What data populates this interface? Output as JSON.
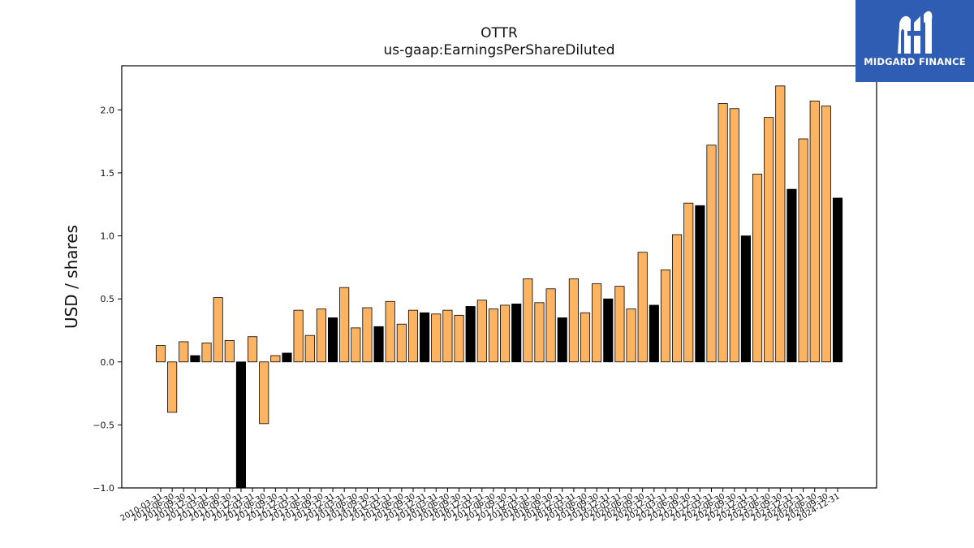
{
  "chart_data": {
    "type": "bar",
    "title": "OTTR",
    "subtitle": "us-gaap:EarningsPerShareDiluted",
    "xlabel": "",
    "ylabel": "USD / shares",
    "ylim": [
      -1.0,
      2.35
    ],
    "yticks": [
      "−1.0",
      "−0.5",
      "0.0",
      "0.5",
      "1.0",
      "1.5",
      "2.0"
    ],
    "ytick_values": [
      -1.0,
      -0.5,
      0.0,
      0.5,
      1.0,
      1.5,
      2.0
    ],
    "grid": false,
    "colors": {
      "quarterly": "#fdb462",
      "annual": "#000000",
      "edge": "#000000"
    },
    "categories": [
      "2010-03-31",
      "2010-06-30",
      "2010-09-30",
      "2010-12-31",
      "2011-03-31",
      "2011-06-30",
      "2011-09-30",
      "2011-12-31",
      "2012-03-31",
      "2012-06-30",
      "2012-09-30",
      "2012-12-31",
      "2013-03-31",
      "2013-06-30",
      "2013-09-30",
      "2013-12-31",
      "2014-03-31",
      "2014-06-30",
      "2014-09-30",
      "2014-12-31",
      "2015-03-31",
      "2015-06-30",
      "2015-09-30",
      "2015-12-31",
      "2016-03-31",
      "2016-06-30",
      "2016-09-30",
      "2016-12-31",
      "2017-03-31",
      "2017-06-30",
      "2017-09-30",
      "2017-12-31",
      "2018-03-31",
      "2018-06-30",
      "2018-09-30",
      "2018-12-31",
      "2019-03-31",
      "2019-06-30",
      "2019-09-30",
      "2019-12-31",
      "2020-03-31",
      "2020-06-30",
      "2020-09-30",
      "2020-12-31",
      "2021-03-31",
      "2021-06-30",
      "2021-09-30",
      "2021-12-31",
      "2022-03-31",
      "2022-06-30",
      "2022-09-30",
      "2022-12-31",
      "2023-03-31",
      "2023-06-30",
      "2023-09-30",
      "2023-12-31",
      "2024-03-31",
      "2024-06-30",
      "2024-09-30",
      "2024-12-31"
    ],
    "values": [
      0.13,
      -0.4,
      0.16,
      0.05,
      0.15,
      0.51,
      0.17,
      -1.0,
      0.2,
      -0.49,
      0.05,
      0.07,
      0.41,
      0.21,
      0.42,
      0.35,
      0.59,
      0.27,
      0.43,
      0.28,
      0.48,
      0.3,
      0.41,
      0.39,
      0.38,
      0.41,
      0.37,
      0.44,
      0.49,
      0.42,
      0.45,
      0.46,
      0.66,
      0.47,
      0.58,
      0.35,
      0.66,
      0.39,
      0.62,
      0.5,
      0.6,
      0.42,
      0.87,
      0.45,
      0.73,
      1.01,
      1.26,
      1.24,
      1.72,
      2.05,
      2.01,
      1.0,
      1.49,
      1.94,
      2.19,
      1.37,
      1.77,
      2.07,
      2.03,
      1.3
    ],
    "is_annual": [
      false,
      false,
      false,
      true,
      false,
      false,
      false,
      true,
      false,
      false,
      false,
      true,
      false,
      false,
      false,
      true,
      false,
      false,
      false,
      true,
      false,
      false,
      false,
      true,
      false,
      false,
      false,
      true,
      false,
      false,
      false,
      true,
      false,
      false,
      false,
      true,
      false,
      false,
      false,
      true,
      false,
      false,
      false,
      true,
      false,
      false,
      false,
      true,
      false,
      false,
      false,
      true,
      false,
      false,
      false,
      true,
      false,
      false,
      false,
      true
    ]
  },
  "brand": {
    "name": "MIDGARD FINANCE"
  }
}
